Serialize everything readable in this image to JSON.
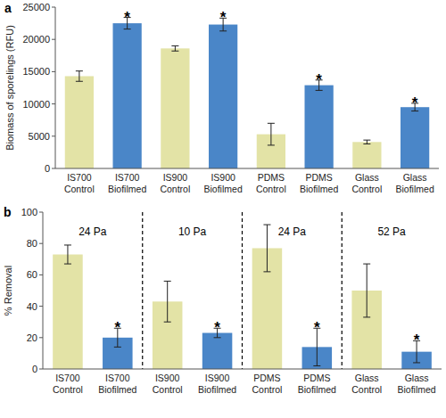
{
  "chart_data": [
    {
      "type": "bar",
      "panel": "a",
      "y_label": "Biomass of sporelings (RFU)",
      "categories": [
        "IS700 Control",
        "IS700 Biofilmed",
        "IS900 Control",
        "IS900 Biofilmed",
        "PDMS Control",
        "PDMS Biofilmed",
        "Glass Control",
        "Glass Biofilmed"
      ],
      "values": [
        14300,
        22500,
        18600,
        22300,
        5300,
        12900,
        4100,
        9500
      ],
      "errors": [
        800,
        900,
        400,
        1000,
        1700,
        800,
        300,
        600
      ],
      "colors": [
        "#e3e3a6",
        "#4a86c8",
        "#e3e3a6",
        "#4a86c8",
        "#e3e3a6",
        "#4a86c8",
        "#e3e3a6",
        "#4a86c8"
      ],
      "annotations": [
        {
          "text": "*",
          "index": 1
        },
        {
          "text": "*",
          "index": 3
        },
        {
          "text": "*",
          "index": 5
        },
        {
          "text": "*",
          "index": 7
        }
      ],
      "ylim": [
        0,
        25000
      ],
      "yticks": [
        0,
        5000,
        10000,
        15000,
        20000,
        25000
      ],
      "grid": false
    },
    {
      "type": "bar",
      "panel": "b",
      "y_label": "% Removal",
      "categories": [
        "IS700 Control",
        "IS700 Biofilmed",
        "IS900 Control",
        "IS900 Biofilmed",
        "PDMS Control",
        "PDMS Biofilmed",
        "Glass Control",
        "Glass Biofilmed"
      ],
      "values": [
        73,
        20,
        43,
        23,
        77,
        14,
        50,
        11
      ],
      "errors": [
        6,
        6,
        13,
        3,
        15,
        12,
        17,
        7
      ],
      "colors": [
        "#e3e3a6",
        "#4a86c8",
        "#e3e3a6",
        "#4a86c8",
        "#e3e3a6",
        "#4a86c8",
        "#e3e3a6",
        "#4a86c8"
      ],
      "annotations": [
        {
          "text": "*",
          "index": 1
        },
        {
          "text": "*",
          "index": 3
        },
        {
          "text": "*",
          "index": 5
        },
        {
          "text": "*",
          "index": 7
        }
      ],
      "groups": [
        {
          "label": "24 Pa",
          "categories": [
            0,
            1
          ]
        },
        {
          "label": "10 Pa",
          "categories": [
            2,
            3
          ]
        },
        {
          "label": "24 Pa",
          "categories": [
            4,
            5
          ]
        },
        {
          "label": "52 Pa",
          "categories": [
            6,
            7
          ]
        }
      ],
      "ylim": [
        0,
        100
      ],
      "yticks": [
        0,
        20,
        40,
        60,
        80,
        100
      ],
      "grid": false
    }
  ]
}
